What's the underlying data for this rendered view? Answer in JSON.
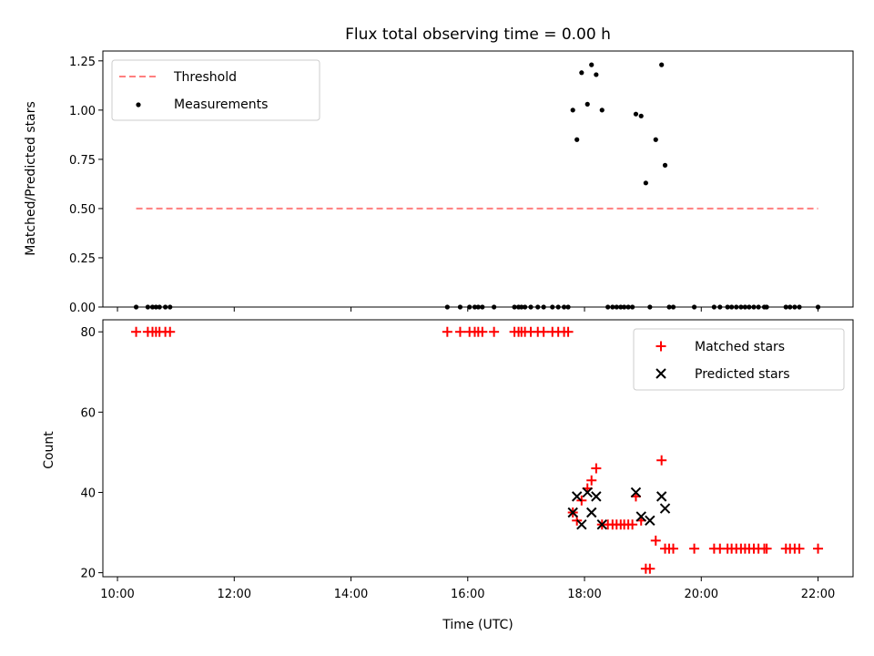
{
  "chart_data": [
    {
      "type": "scatter",
      "title": "Flux total observing time = 0.00 h",
      "xlabel": "",
      "ylabel": "Matched/Predicted stars",
      "xlim": [
        9.75,
        22.6
      ],
      "ylim": [
        0.0,
        1.3
      ],
      "yticks": [
        0.0,
        0.25,
        0.5,
        0.75,
        1.0,
        1.25
      ],
      "ytick_labels": [
        "0.00",
        "0.25",
        "0.50",
        "0.75",
        "1.00",
        "1.25"
      ],
      "grid": false,
      "legend_position": "top-left",
      "legend": [
        "Threshold",
        "Measurements"
      ],
      "series": [
        {
          "name": "Threshold",
          "type": "line",
          "color": "#ff7f7f",
          "style": "dashed",
          "x": [
            10.32,
            22.0
          ],
          "y": [
            0.5,
            0.5
          ]
        },
        {
          "name": "Measurements",
          "type": "scatter",
          "color": "#000000",
          "x": [
            10.32,
            10.52,
            10.6,
            10.66,
            10.72,
            10.82,
            10.9,
            15.65,
            15.87,
            16.03,
            16.12,
            16.18,
            16.25,
            16.45,
            16.8,
            16.87,
            16.92,
            16.98,
            17.08,
            17.2,
            17.3,
            17.45,
            17.55,
            17.65,
            17.72,
            17.8,
            17.87,
            17.95,
            18.05,
            18.12,
            18.2,
            18.3,
            18.4,
            18.48,
            18.55,
            18.62,
            18.68,
            18.75,
            18.82,
            18.88,
            18.97,
            19.05,
            19.12,
            19.22,
            19.32,
            19.38,
            19.45,
            19.52,
            19.88,
            20.22,
            20.32,
            20.45,
            20.52,
            20.6,
            20.68,
            20.75,
            20.82,
            20.9,
            20.98,
            21.08,
            21.12,
            21.45,
            21.52,
            21.6,
            21.68,
            22.0
          ],
          "y": [
            0,
            0,
            0,
            0,
            0,
            0,
            0,
            0,
            0,
            0,
            0,
            0,
            0,
            0,
            0,
            0,
            0,
            0,
            0,
            0,
            0,
            0,
            0,
            0,
            0,
            1.0,
            0.85,
            1.19,
            1.03,
            1.23,
            1.18,
            1.0,
            0,
            0,
            0,
            0,
            0,
            0,
            0,
            0.98,
            0.97,
            0.63,
            0,
            0.85,
            1.23,
            0.72,
            0,
            0,
            0,
            0,
            0,
            0,
            0,
            0,
            0,
            0,
            0,
            0,
            0,
            0,
            0,
            0,
            0,
            0,
            0,
            0
          ]
        }
      ]
    },
    {
      "type": "scatter",
      "title": "",
      "xlabel": "Time (UTC)",
      "ylabel": "Count",
      "xlim": [
        9.75,
        22.6
      ],
      "ylim": [
        19.0,
        83.0
      ],
      "xticks": [
        10,
        12,
        14,
        16,
        18,
        20,
        22
      ],
      "xtick_labels": [
        "10:00",
        "12:00",
        "14:00",
        "16:00",
        "18:00",
        "20:00",
        "22:00"
      ],
      "yticks": [
        20,
        40,
        60,
        80
      ],
      "ytick_labels": [
        "20",
        "40",
        "60",
        "80"
      ],
      "grid": false,
      "legend_position": "top-right",
      "legend": [
        "Matched stars",
        "Predicted stars"
      ],
      "series": [
        {
          "name": "Matched stars",
          "type": "scatter",
          "marker": "plus",
          "color": "#ff0000",
          "x": [
            10.32,
            10.52,
            10.6,
            10.66,
            10.72,
            10.82,
            10.9,
            15.65,
            15.87,
            16.03,
            16.12,
            16.18,
            16.25,
            16.45,
            16.8,
            16.87,
            16.92,
            16.98,
            17.08,
            17.2,
            17.3,
            17.45,
            17.55,
            17.65,
            17.72,
            17.8,
            17.87,
            17.95,
            18.05,
            18.12,
            18.2,
            18.3,
            18.4,
            18.48,
            18.55,
            18.62,
            18.68,
            18.75,
            18.82,
            18.88,
            18.97,
            19.05,
            19.12,
            19.22,
            19.32,
            19.38,
            19.45,
            19.52,
            19.88,
            20.22,
            20.32,
            20.45,
            20.52,
            20.6,
            20.68,
            20.75,
            20.82,
            20.9,
            20.98,
            21.08,
            21.12,
            21.45,
            21.52,
            21.6,
            21.68,
            22.0
          ],
          "y": [
            80,
            80,
            80,
            80,
            80,
            80,
            80,
            80,
            80,
            80,
            80,
            80,
            80,
            80,
            80,
            80,
            80,
            80,
            80,
            80,
            80,
            80,
            80,
            80,
            80,
            35,
            33,
            38,
            41,
            43,
            46,
            32,
            32,
            32,
            32,
            32,
            32,
            32,
            32,
            39,
            33,
            21,
            21,
            28,
            48,
            26,
            26,
            26,
            26,
            26,
            26,
            26,
            26,
            26,
            26,
            26,
            26,
            26,
            26,
            26,
            26,
            26,
            26,
            26,
            26,
            26
          ]
        },
        {
          "name": "Predicted stars",
          "type": "scatter",
          "marker": "x",
          "color": "#000000",
          "x": [
            17.8,
            17.87,
            17.95,
            18.05,
            18.12,
            18.2,
            18.3,
            18.88,
            18.97,
            19.12,
            19.32,
            19.38
          ],
          "y": [
            35,
            39,
            32,
            40,
            35,
            39,
            32,
            40,
            34,
            33,
            39,
            36
          ]
        }
      ]
    }
  ]
}
